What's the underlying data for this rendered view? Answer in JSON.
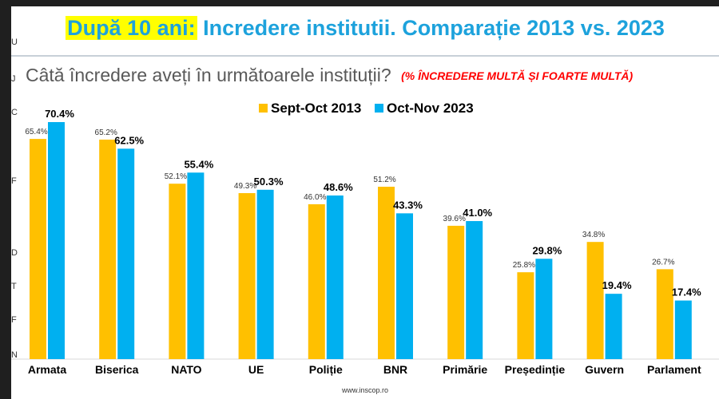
{
  "header": {
    "title_highlight": "După 10 ani:",
    "title_rest": "Incredere institutii. Comparație 2013 vs. 2023",
    "question": "Câtă încredere aveți în următoarele instituții?",
    "question_note": "(% ÎNCREDERE MULTĂ ȘI FOARTE MULTĂ)"
  },
  "footer": {
    "source": "www.inscop.ro"
  },
  "side_letters": [
    "U",
    "J",
    "C",
    "F",
    "D",
    "T",
    "F",
    "N"
  ],
  "colors": {
    "series_2013": "#ffc000",
    "series_2023": "#00b0f0",
    "title": "#1da2dc",
    "note": "#ff0000"
  },
  "chart_data": {
    "type": "bar",
    "categories": [
      "Armata",
      "Biserica",
      "NATO",
      "UE",
      "Poliție",
      "BNR",
      "Primărie",
      "Președinție",
      "Guvern",
      "Parlament"
    ],
    "series": [
      {
        "name": "Sept-Oct 2013",
        "values": [
          65.4,
          65.2,
          52.1,
          49.3,
          46.0,
          51.2,
          39.6,
          25.8,
          34.8,
          26.7
        ],
        "labels": [
          "65.4%",
          "65.2%",
          "52.1%",
          "49.3%",
          "46.0%",
          "51.2%",
          "39.6%",
          "25.8%",
          "34.8%",
          "26.7%"
        ]
      },
      {
        "name": "Oct-Nov 2023",
        "values": [
          70.4,
          62.5,
          55.4,
          50.3,
          48.6,
          43.3,
          41.0,
          29.8,
          19.4,
          17.4
        ],
        "labels": [
          "70.4%",
          "62.5%",
          "55.4%",
          "50.3%",
          "48.6%",
          "43.3%",
          "41.0%",
          "29.8%",
          "19.4%",
          "17.4%"
        ]
      }
    ],
    "ylim": [
      0,
      70.4
    ],
    "legend": "top-center",
    "grid": false
  }
}
